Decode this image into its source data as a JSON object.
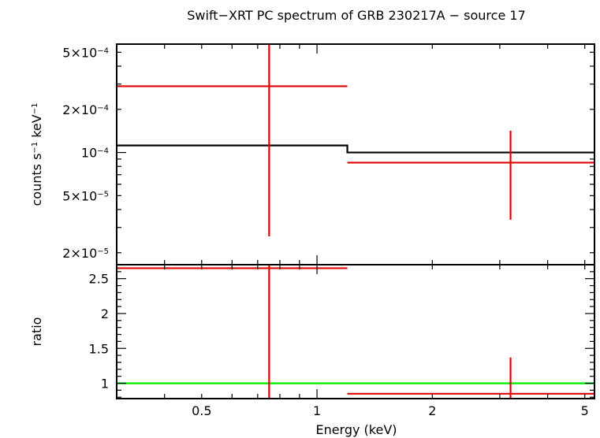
{
  "chart_data": {
    "type": "scatter",
    "title": "Swift−XRT PC spectrum of GRB 230217A − source 17",
    "xlabel": "Energy (keV)",
    "x_scale": "log",
    "xlim": [
      0.3,
      5.3
    ],
    "x_tick_labels": [
      "0.5",
      "1",
      "2",
      "5"
    ],
    "x_tick_values": [
      0.5,
      1,
      2,
      5
    ],
    "colors": {
      "data": "#e00000",
      "model": "#000000",
      "unity": "#00ee00"
    },
    "top_panel": {
      "ylabel_text": "counts s",
      "ylabel_sup1": "−1",
      "ylabel_mid": " keV",
      "ylabel_sup2": "−1",
      "y_scale": "log",
      "ylim": [
        1.65e-05,
        0.00057
      ],
      "y_ticks": [
        {
          "value": 2e-05,
          "base": "2×10",
          "exp": "−5"
        },
        {
          "value": 5e-05,
          "base": "5×10",
          "exp": "−5"
        },
        {
          "value": 0.0001,
          "base": "10",
          "exp": "−4"
        },
        {
          "value": 0.0002,
          "base": "2×10",
          "exp": "−4"
        },
        {
          "value": 0.0005,
          "base": "5×10",
          "exp": "−4"
        }
      ],
      "data": [
        {
          "x": 0.75,
          "xlo": 0.3,
          "xhi": 1.2,
          "y": 0.00029,
          "ylo": 2.6e-05,
          "yhi": 0.00057
        },
        {
          "x": 3.2,
          "xlo": 1.2,
          "xhi": 5.3,
          "y": 8.5e-05,
          "ylo": 3.4e-05,
          "yhi": 0.000142
        }
      ],
      "model": [
        {
          "xlo": 0.3,
          "xhi": 1.2,
          "y": 0.000112
        },
        {
          "xlo": 1.2,
          "xhi": 5.3,
          "y": 0.0001
        }
      ]
    },
    "bottom_panel": {
      "ylabel": "ratio",
      "y_scale": "linear",
      "ylim": [
        0.78,
        2.7
      ],
      "y_ticks": [
        1,
        1.5,
        2,
        2.5
      ],
      "y_tick_labels": [
        "1",
        "1.5",
        "2",
        "2.5"
      ],
      "data": [
        {
          "x": 0.75,
          "xlo": 0.3,
          "xhi": 1.2,
          "y": 2.65,
          "ylo": 0.78,
          "yhi": 2.7
        },
        {
          "x": 3.2,
          "xlo": 1.2,
          "xhi": 5.3,
          "y": 0.85,
          "ylo": 0.78,
          "yhi": 1.37
        }
      ],
      "reference_line": 1
    }
  }
}
